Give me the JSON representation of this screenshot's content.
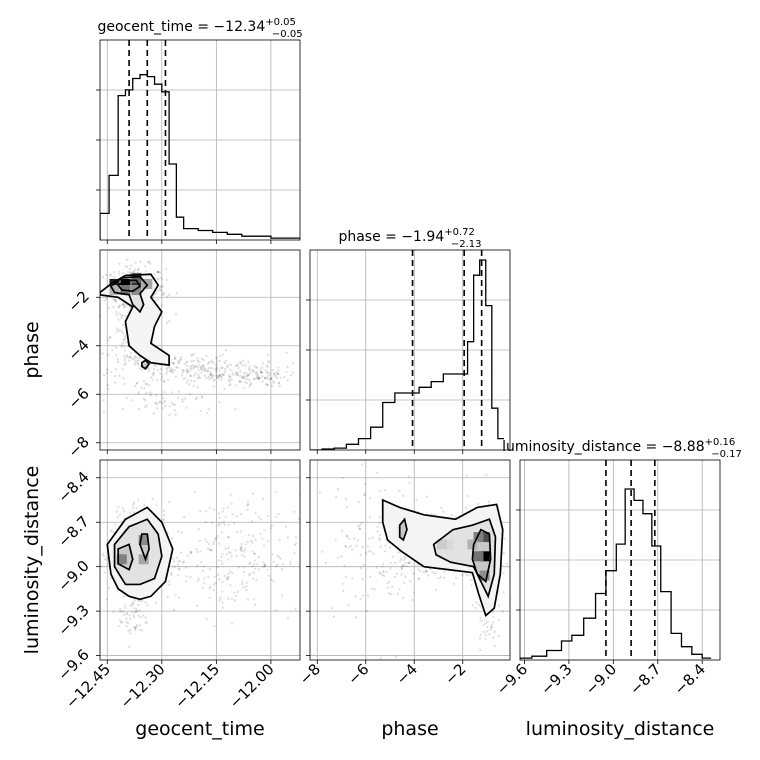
{
  "chart_data": {
    "type": "scatter",
    "subtype": "corner",
    "parameters": [
      "geocent_time",
      "phase",
      "luminosity_distance"
    ],
    "titles": [
      {
        "param": "geocent_time",
        "text": "geocent_time = −12.34",
        "plus": "+0.05",
        "minus": "−0.05"
      },
      {
        "param": "phase",
        "text": "phase = −1.94",
        "plus": "+0.72",
        "minus": "−2.13"
      },
      {
        "param": "luminosity_distance",
        "text": "luminosity_distance = −8.88",
        "plus": "+0.16",
        "minus": "−0.17"
      }
    ],
    "ranges": {
      "geocent_time": [
        -12.47,
        -11.92
      ],
      "phase": [
        -8.3,
        -0.05
      ],
      "luminosity_distance": [
        -9.63,
        -8.28
      ]
    },
    "ticks": {
      "geocent_time": [
        -12.45,
        -12.3,
        -12.15,
        -12.0
      ],
      "phase": [
        -8,
        -6,
        -4,
        -2
      ],
      "luminosity_distance": [
        -9.6,
        -9.3,
        -9.0,
        -8.7,
        -8.4
      ]
    },
    "tick_labels": {
      "geocent_time": [
        "−12.45",
        "−12.30",
        "−12.15",
        "−12.00"
      ],
      "phase": [
        "−8",
        "−6",
        "−4",
        "−2"
      ],
      "luminosity_distance": [
        "−9.6",
        "−9.3",
        "−9.0",
        "−8.7",
        "−8.4"
      ]
    },
    "axis_labels": {
      "geocent_time": "geocent_time",
      "phase": "phase",
      "luminosity_distance": "luminosity_distance"
    },
    "quantiles": {
      "geocent_time": [
        -12.39,
        -12.34,
        -12.29
      ],
      "phase": [
        -4.07,
        -1.94,
        -1.22
      ],
      "luminosity_distance": [
        -9.05,
        -8.88,
        -8.72
      ]
    },
    "histograms": {
      "geocent_time": {
        "edges": [
          -12.47,
          -12.445,
          -12.42,
          -12.4,
          -12.38,
          -12.36,
          -12.34,
          -12.32,
          -12.3,
          -12.28,
          -12.26,
          -12.24,
          -12.2,
          -12.16,
          -12.12,
          -12.08,
          -12.04,
          -12.0,
          -11.96,
          -11.92
        ],
        "counts": [
          0.14,
          0.34,
          0.76,
          0.79,
          0.85,
          0.87,
          0.86,
          0.82,
          0.78,
          0.4,
          0.12,
          0.06,
          0.05,
          0.04,
          0.03,
          0.02,
          0.02,
          0.01,
          0.01
        ]
      },
      "phase": {
        "edges": [
          -8.3,
          -7.8,
          -7.3,
          -6.8,
          -6.3,
          -5.8,
          -5.3,
          -4.8,
          -4.3,
          -3.8,
          -3.3,
          -2.8,
          -2.3,
          -1.8,
          -1.55,
          -1.3,
          -1.05,
          -0.8,
          -0.55,
          -0.3
        ],
        "counts": [
          0.0,
          0.005,
          0.01,
          0.03,
          0.06,
          0.12,
          0.25,
          0.3,
          0.3,
          0.33,
          0.36,
          0.4,
          0.4,
          0.57,
          0.92,
          1.0,
          0.76,
          0.22,
          0.06
        ]
      },
      "luminosity_distance": {
        "edges": [
          -9.63,
          -9.55,
          -9.45,
          -9.35,
          -9.28,
          -9.2,
          -9.12,
          -9.05,
          -8.98,
          -8.92,
          -8.86,
          -8.8,
          -8.74,
          -8.68,
          -8.61,
          -8.54,
          -8.47,
          -8.4,
          -8.34
        ],
        "counts": [
          0.01,
          0.02,
          0.05,
          0.1,
          0.13,
          0.22,
          0.35,
          0.47,
          0.61,
          0.9,
          0.84,
          0.77,
          0.6,
          0.36,
          0.14,
          0.07,
          0.03,
          0.01
        ]
      }
    },
    "pairs": [
      {
        "x": "geocent_time",
        "y": "phase",
        "clusters": [
          {
            "cx": -12.37,
            "cy": -1.7,
            "sx": 0.04,
            "sy": 0.5,
            "n": 320
          },
          {
            "cx": -12.37,
            "cy": -3.6,
            "sx": 0.035,
            "sy": 0.8,
            "n": 200
          },
          {
            "cx": -12.2,
            "cy": -5.0,
            "sx": 0.12,
            "sy": 0.35,
            "n": 260
          },
          {
            "cx": -12.05,
            "cy": -5.3,
            "sx": 0.05,
            "sy": 0.2,
            "n": 80
          },
          {
            "cx": -12.28,
            "cy": -6.3,
            "sx": 0.08,
            "sy": 0.35,
            "n": 60
          }
        ],
        "hot_cells": [
          {
            "x": -12.43,
            "y": -1.45,
            "v": 0.9
          },
          {
            "x": -12.4,
            "y": -1.45,
            "v": 1.0
          },
          {
            "x": -12.37,
            "y": -1.45,
            "v": 0.8
          },
          {
            "x": -12.37,
            "y": -1.2,
            "v": 0.6
          },
          {
            "x": -12.4,
            "y": -1.7,
            "v": 0.55
          },
          {
            "x": -12.37,
            "y": -1.7,
            "v": 0.45
          },
          {
            "x": -12.34,
            "y": -1.45,
            "v": 0.35
          },
          {
            "x": -12.43,
            "y": -1.7,
            "v": 0.3
          }
        ],
        "contours": [
          [
            [
              -12.47,
              -1.8
            ],
            [
              -12.44,
              -1.45
            ],
            [
              -12.4,
              -1.1
            ],
            [
              -12.33,
              -1.05
            ],
            [
              -12.31,
              -1.5
            ],
            [
              -12.33,
              -2.0
            ],
            [
              -12.3,
              -2.6
            ],
            [
              -12.32,
              -3.2
            ],
            [
              -12.33,
              -3.9
            ],
            [
              -12.28,
              -4.4
            ],
            [
              -12.28,
              -4.8
            ],
            [
              -12.33,
              -4.7
            ],
            [
              -12.36,
              -4.4
            ],
            [
              -12.39,
              -4.0
            ],
            [
              -12.4,
              -3.0
            ],
            [
              -12.38,
              -2.4
            ],
            [
              -12.42,
              -2.0
            ],
            [
              -12.47,
              -1.9
            ]
          ],
          [
            [
              -12.44,
              -1.55
            ],
            [
              -12.41,
              -1.2
            ],
            [
              -12.36,
              -1.15
            ],
            [
              -12.34,
              -1.5
            ],
            [
              -12.36,
              -1.85
            ],
            [
              -12.35,
              -2.3
            ],
            [
              -12.36,
              -2.6
            ],
            [
              -12.38,
              -2.3
            ],
            [
              -12.39,
              -1.9
            ],
            [
              -12.43,
              -1.8
            ]
          ],
          [
            [
              -12.42,
              -1.5
            ],
            [
              -12.4,
              -1.3
            ],
            [
              -12.37,
              -1.3
            ],
            [
              -12.36,
              -1.55
            ],
            [
              -12.38,
              -1.75
            ],
            [
              -12.41,
              -1.7
            ]
          ],
          [
            [
              -12.355,
              -4.7
            ],
            [
              -12.345,
              -4.6
            ],
            [
              -12.335,
              -4.75
            ],
            [
              -12.345,
              -4.95
            ],
            [
              -12.355,
              -4.85
            ]
          ]
        ]
      },
      {
        "x": "geocent_time",
        "y": "luminosity_distance",
        "clusters": [
          {
            "cx": -12.36,
            "cy": -8.92,
            "sx": 0.04,
            "sy": 0.13,
            "n": 480
          },
          {
            "cx": -12.12,
            "cy": -8.92,
            "sx": 0.1,
            "sy": 0.2,
            "n": 260
          },
          {
            "cx": -12.38,
            "cy": -9.35,
            "sx": 0.02,
            "sy": 0.08,
            "n": 50
          }
        ],
        "hot_cells": [
          {
            "x": -12.41,
            "y": -8.95,
            "v": 0.5
          },
          {
            "x": -12.35,
            "y": -8.82,
            "v": 0.45
          },
          {
            "x": -12.35,
            "y": -8.95,
            "v": 0.35
          }
        ],
        "contours": [
          [
            [
              -12.44,
              -9.05
            ],
            [
              -12.45,
              -8.85
            ],
            [
              -12.4,
              -8.68
            ],
            [
              -12.34,
              -8.6
            ],
            [
              -12.3,
              -8.7
            ],
            [
              -12.27,
              -8.88
            ],
            [
              -12.29,
              -9.1
            ],
            [
              -12.33,
              -9.2
            ],
            [
              -12.36,
              -9.22
            ],
            [
              -12.39,
              -9.2
            ],
            [
              -12.42,
              -9.15
            ]
          ],
          [
            [
              -12.43,
              -9.0
            ],
            [
              -12.43,
              -8.85
            ],
            [
              -12.39,
              -8.73
            ],
            [
              -12.34,
              -8.68
            ],
            [
              -12.31,
              -8.78
            ],
            [
              -12.3,
              -8.93
            ],
            [
              -12.32,
              -9.08
            ],
            [
              -12.36,
              -9.12
            ],
            [
              -12.4,
              -9.12
            ]
          ],
          [
            [
              -12.42,
              -8.98
            ],
            [
              -12.42,
              -8.88
            ],
            [
              -12.39,
              -8.85
            ],
            [
              -12.38,
              -8.95
            ],
            [
              -12.39,
              -9.02
            ]
          ],
          [
            [
              -12.36,
              -8.85
            ],
            [
              -12.355,
              -8.78
            ],
            [
              -12.34,
              -8.78
            ],
            [
              -12.335,
              -8.88
            ],
            [
              -12.345,
              -8.95
            ]
          ]
        ]
      },
      {
        "x": "phase",
        "y": "luminosity_distance",
        "clusters": [
          {
            "cx": -3.4,
            "cy": -8.85,
            "sx": 1.0,
            "sy": 0.12,
            "n": 380
          },
          {
            "cx": -1.15,
            "cy": -8.92,
            "sx": 0.35,
            "sy": 0.15,
            "n": 340
          },
          {
            "cx": -5.5,
            "cy": -8.85,
            "sx": 1.2,
            "sy": 0.25,
            "n": 120
          },
          {
            "cx": -1.0,
            "cy": -9.35,
            "sx": 0.2,
            "sy": 0.1,
            "n": 40
          }
        ],
        "hot_cells": [
          {
            "x": -1.1,
            "y": -8.93,
            "v": 1.0
          },
          {
            "x": -1.1,
            "y": -8.8,
            "v": 0.7
          },
          {
            "x": -1.35,
            "y": -8.8,
            "v": 0.5
          },
          {
            "x": -1.35,
            "y": -8.93,
            "v": 0.55
          },
          {
            "x": -1.1,
            "y": -9.06,
            "v": 0.45
          },
          {
            "x": -1.6,
            "y": -8.85,
            "v": 0.3
          },
          {
            "x": -2.6,
            "y": -8.85,
            "v": 0.15
          },
          {
            "x": -2.85,
            "y": -8.85,
            "v": 0.2
          }
        ],
        "contours": [
          [
            [
              -5.3,
              -8.55
            ],
            [
              -4.6,
              -8.6
            ],
            [
              -3.6,
              -8.65
            ],
            [
              -2.3,
              -8.68
            ],
            [
              -1.4,
              -8.6
            ],
            [
              -0.6,
              -8.58
            ],
            [
              -0.35,
              -8.75
            ],
            [
              -0.45,
              -9.05
            ],
            [
              -0.7,
              -9.28
            ],
            [
              -1.05,
              -9.33
            ],
            [
              -1.35,
              -9.18
            ],
            [
              -1.6,
              -9.04
            ],
            [
              -2.6,
              -9.02
            ],
            [
              -3.6,
              -9.0
            ],
            [
              -4.5,
              -8.9
            ],
            [
              -5.1,
              -8.82
            ],
            [
              -5.3,
              -8.7
            ]
          ],
          [
            [
              -3.2,
              -8.85
            ],
            [
              -2.4,
              -8.75
            ],
            [
              -1.6,
              -8.72
            ],
            [
              -0.9,
              -8.68
            ],
            [
              -0.65,
              -8.8
            ],
            [
              -0.7,
              -9.05
            ],
            [
              -0.95,
              -9.2
            ],
            [
              -1.25,
              -9.1
            ],
            [
              -1.55,
              -9.0
            ],
            [
              -2.5,
              -8.97
            ],
            [
              -3.1,
              -8.92
            ]
          ],
          [
            [
              -1.55,
              -8.85
            ],
            [
              -1.25,
              -8.75
            ],
            [
              -0.9,
              -8.78
            ],
            [
              -0.85,
              -8.95
            ],
            [
              -1.05,
              -9.1
            ],
            [
              -1.4,
              -9.05
            ],
            [
              -1.6,
              -8.95
            ]
          ],
          [
            [
              -4.6,
              -8.72
            ],
            [
              -4.4,
              -8.68
            ],
            [
              -4.3,
              -8.75
            ],
            [
              -4.45,
              -8.82
            ],
            [
              -4.6,
              -8.8
            ]
          ]
        ]
      }
    ]
  }
}
